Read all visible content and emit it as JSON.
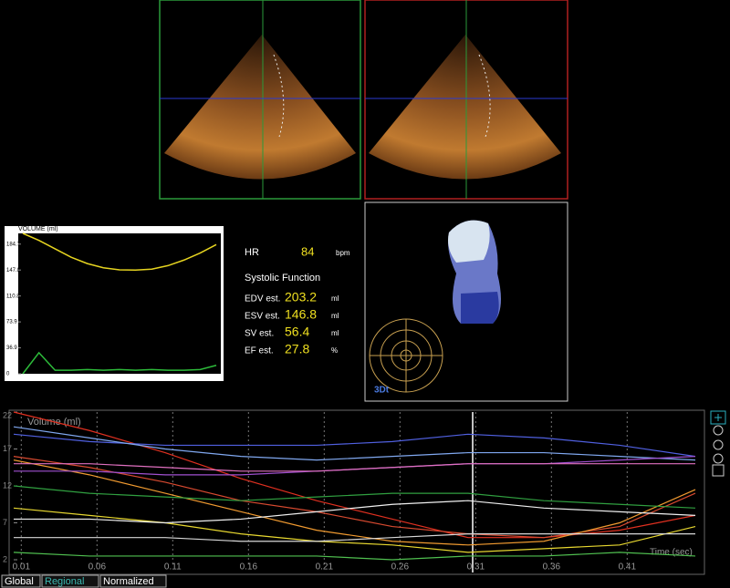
{
  "volume_panel": {
    "title": "VOLUME (ml)",
    "ylim": [
      0,
      200
    ],
    "yticks": [
      184.7,
      147.8,
      110.8,
      73.9,
      36.9,
      0
    ],
    "series": [
      {
        "color": "#e6d420",
        "values": [
          200,
          190,
          178,
          166,
          157,
          151,
          148,
          147.8,
          149,
          154,
          162,
          172,
          184
        ]
      },
      {
        "color": "#2dbb3a",
        "values": [
          0,
          30,
          5,
          5,
          6,
          5,
          6,
          5,
          6,
          5,
          5,
          6,
          12
        ]
      }
    ]
  },
  "measurements": {
    "hr_label": "HR",
    "hr": 84,
    "hr_unit": "bpm",
    "section": "Systolic Function",
    "rows": [
      {
        "label": "EDV est.",
        "value": 203.2,
        "unit": "ml"
      },
      {
        "label": "ESV est.",
        "value": 146.8,
        "unit": "ml"
      },
      {
        "label": "SV est.",
        "value": 56.4,
        "unit": "ml"
      },
      {
        "label": "EF est.",
        "value": 27.8,
        "unit": "%"
      }
    ]
  },
  "view3d": {
    "label": "3Dt"
  },
  "regional_chart": {
    "y_label": "Volume (ml)",
    "x_label": "Time (sec)",
    "xlim": [
      0.005,
      0.455
    ],
    "ylim": [
      2,
      22
    ],
    "xticks": [
      0.01,
      0.06,
      0.11,
      0.16,
      0.21,
      0.26,
      0.31,
      0.36,
      0.41
    ],
    "yticks": [
      22,
      17,
      12,
      7,
      2
    ],
    "x": [
      0.005,
      0.055,
      0.105,
      0.155,
      0.205,
      0.255,
      0.305,
      0.355,
      0.405,
      0.455
    ],
    "series": [
      {
        "color": "#e03020",
        "values": [
          22,
          19.5,
          16.5,
          13,
          10,
          7.5,
          5,
          5,
          6,
          8
        ]
      },
      {
        "color": "#d84a30",
        "values": [
          16,
          14.5,
          12.5,
          10,
          8.5,
          6.5,
          5.5,
          5,
          6.5,
          11
        ]
      },
      {
        "color": "#f09a30",
        "values": [
          15.5,
          13.5,
          11,
          8.5,
          6,
          4.5,
          4,
          4.5,
          7,
          11.5
        ]
      },
      {
        "color": "#e8d830",
        "values": [
          9,
          8,
          7,
          5.5,
          4.5,
          4,
          3,
          3.5,
          4,
          6.5
        ]
      },
      {
        "color": "#f0f0f0",
        "values": [
          7.5,
          7.5,
          7,
          7.5,
          8.5,
          9.5,
          10,
          9,
          8.5,
          8
        ]
      },
      {
        "color": "#d8d8d8",
        "values": [
          5,
          5,
          5,
          4.5,
          4.5,
          5,
          5.5,
          5.5,
          5.5,
          5.5
        ]
      },
      {
        "color": "#5060e0",
        "values": [
          19,
          18,
          17.5,
          17.5,
          17.5,
          18,
          19,
          18.5,
          17.5,
          16
        ]
      },
      {
        "color": "#80a8f0",
        "values": [
          20,
          18.5,
          17,
          16,
          15.5,
          16,
          16.5,
          16.5,
          16,
          15.5
        ]
      },
      {
        "color": "#a050d0",
        "values": [
          14,
          14,
          13.5,
          13.5,
          14,
          14.5,
          15,
          15,
          15.5,
          16
        ]
      },
      {
        "color": "#e070c0",
        "values": [
          15,
          15,
          14.5,
          14,
          14,
          14.5,
          15,
          15,
          15,
          15
        ]
      },
      {
        "color": "#30a040",
        "values": [
          12,
          11,
          10.5,
          10,
          10.5,
          11,
          11,
          10,
          9.5,
          9
        ]
      },
      {
        "color": "#50c050",
        "values": [
          3,
          2.5,
          2.5,
          2.5,
          2.5,
          2,
          2.5,
          2.5,
          3,
          2.5
        ]
      }
    ]
  },
  "tabs": [
    "Global",
    "Regional",
    "Normalized"
  ]
}
